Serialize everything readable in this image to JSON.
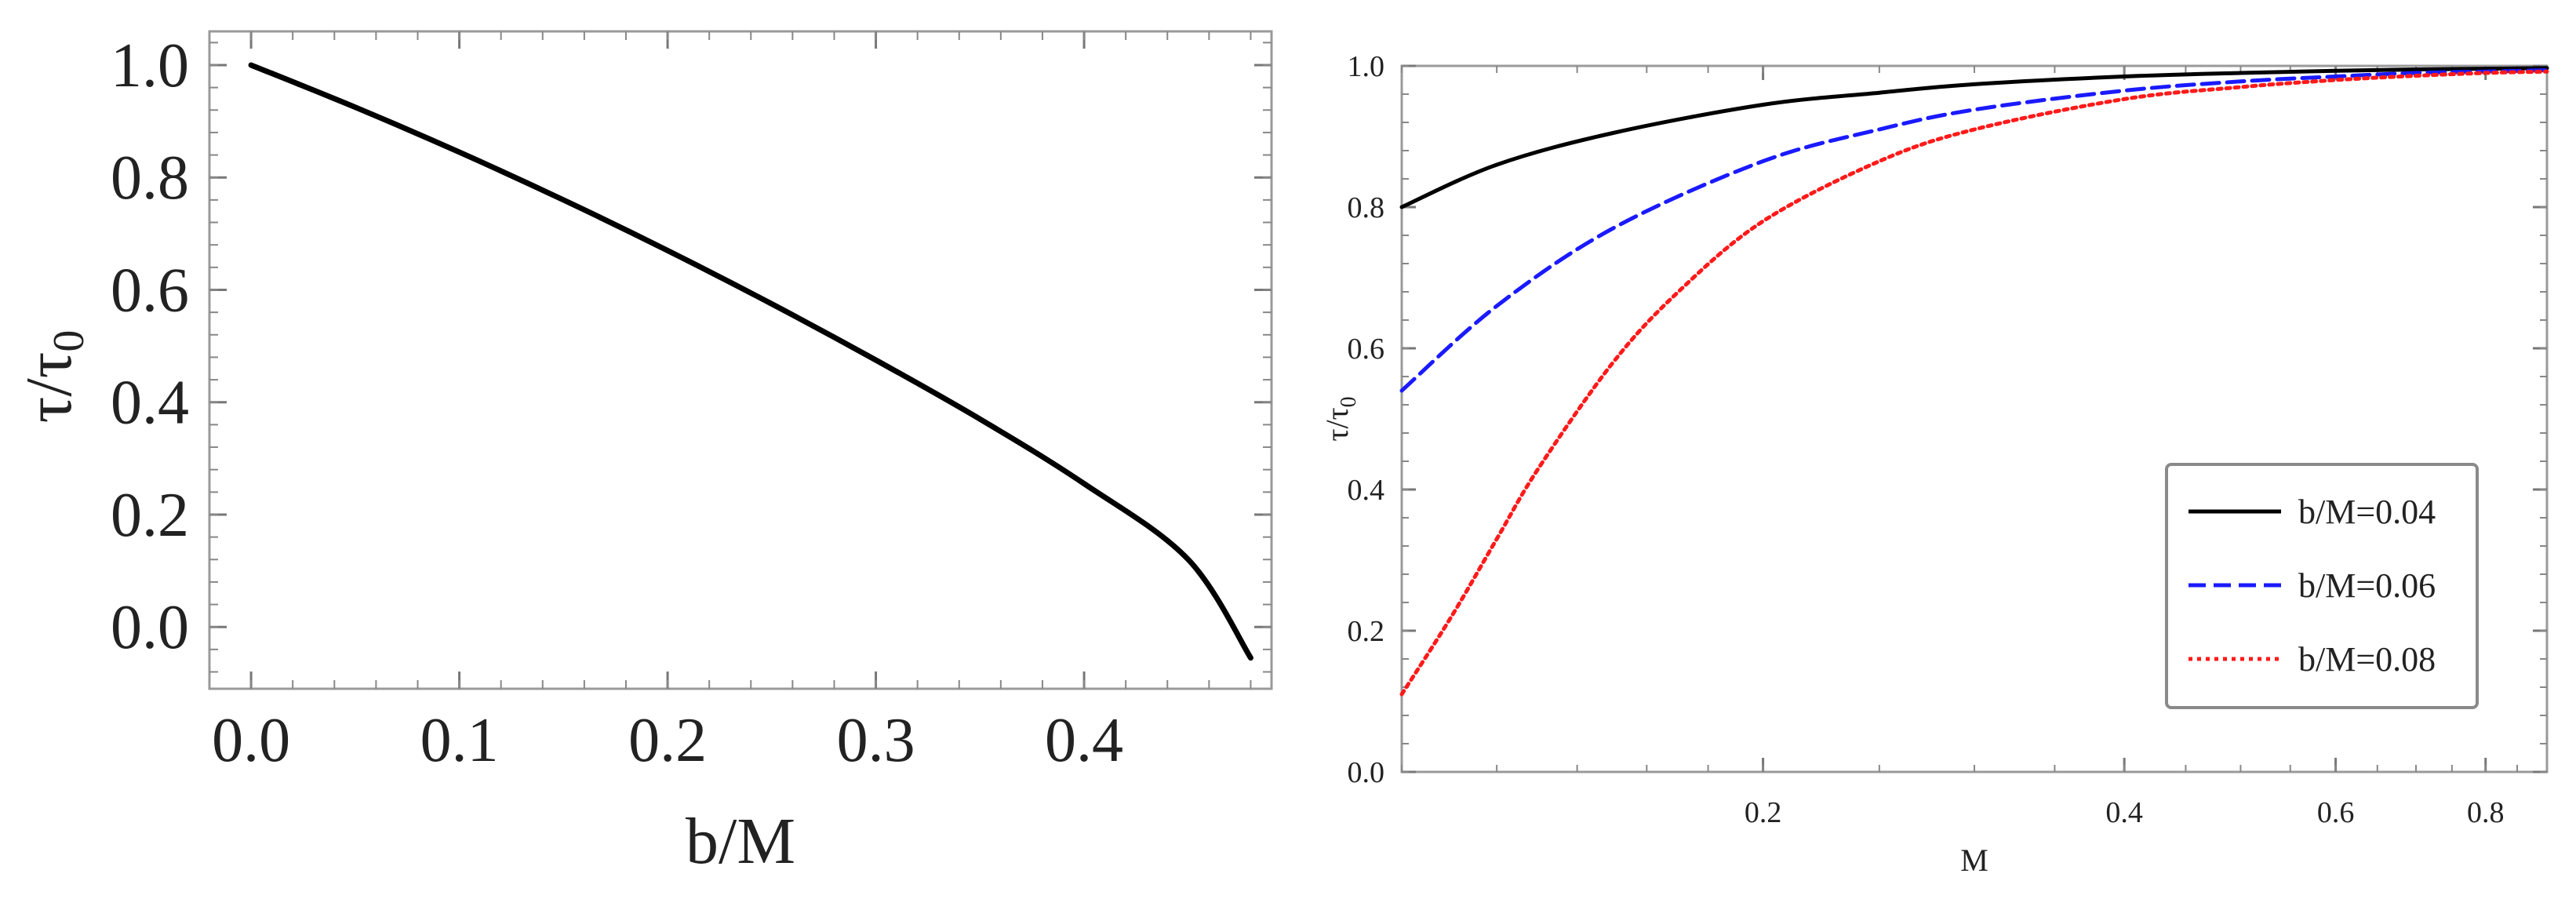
{
  "chart_data": [
    {
      "type": "line",
      "xlabel": "b/M",
      "ylabel": "τ/τ0",
      "ylabel_main": "τ/τ",
      "ylabel_sub": "0",
      "xlim": [
        -0.02,
        0.49
      ],
      "ylim": [
        -0.11,
        1.06
      ],
      "xticks": [
        0.0,
        0.1,
        0.2,
        0.3,
        0.4
      ],
      "xtick_labels": [
        "0.0",
        "0.1",
        "0.2",
        "0.3",
        "0.4"
      ],
      "yticks": [
        0.0,
        0.2,
        0.4,
        0.6,
        0.8,
        1.0
      ],
      "ytick_labels": [
        "0.0",
        "0.2",
        "0.4",
        "0.6",
        "0.8",
        "1.0"
      ],
      "grid": false,
      "series": [
        {
          "color": "#000000",
          "style": "solid",
          "x": [
            0.0,
            0.05,
            0.1,
            0.15,
            0.2,
            0.25,
            0.3,
            0.35,
            0.4,
            0.45,
            0.48
          ],
          "y": [
            1.0,
            0.925,
            0.845,
            0.76,
            0.67,
            0.575,
            0.475,
            0.37,
            0.255,
            0.12,
            -0.055
          ]
        }
      ]
    },
    {
      "type": "line",
      "xlabel": "M",
      "ylabel": "τ/τ0",
      "ylabel_main": "τ/τ",
      "ylabel_sub": "0",
      "xscale": "log",
      "xlim": [
        0.1,
        0.9
      ],
      "ylim": [
        0.0,
        1.0
      ],
      "xticks": [
        0.2,
        0.4,
        0.6,
        0.8
      ],
      "xtick_labels": [
        "0.2",
        "0.4",
        "0.6",
        "0.8"
      ],
      "yticks": [
        0.0,
        0.2,
        0.4,
        0.6,
        0.8,
        1.0
      ],
      "ytick_labels": [
        "0.0",
        "0.2",
        "0.4",
        "0.6",
        "0.8",
        "1.0"
      ],
      "grid": false,
      "legend_position": "bottom-right",
      "series": [
        {
          "name": "b/M=0.04",
          "color": "#000000",
          "style": "solid",
          "x": [
            0.1,
            0.12,
            0.15,
            0.2,
            0.25,
            0.3,
            0.4,
            0.5,
            0.6,
            0.7,
            0.8,
            0.9
          ],
          "y": [
            0.8,
            0.86,
            0.905,
            0.945,
            0.962,
            0.974,
            0.985,
            0.99,
            0.993,
            0.995,
            0.996,
            0.997
          ]
        },
        {
          "name": "b/M=0.06",
          "color": "#1a1aff",
          "style": "dashed",
          "x": [
            0.1,
            0.12,
            0.15,
            0.2,
            0.25,
            0.3,
            0.4,
            0.5,
            0.6,
            0.7,
            0.8,
            0.9
          ],
          "y": [
            0.54,
            0.66,
            0.77,
            0.865,
            0.91,
            0.938,
            0.965,
            0.978,
            0.985,
            0.99,
            0.992,
            0.994
          ]
        },
        {
          "name": "b/M=0.08",
          "color": "#ff1a1a",
          "style": "dotted",
          "x": [
            0.1,
            0.11,
            0.12,
            0.13,
            0.15,
            0.17,
            0.2,
            0.25,
            0.3,
            0.4,
            0.5,
            0.6,
            0.7,
            0.8,
            0.9
          ],
          "y": [
            0.11,
            0.22,
            0.33,
            0.43,
            0.58,
            0.68,
            0.78,
            0.865,
            0.91,
            0.953,
            0.97,
            0.98,
            0.986,
            0.99,
            0.992
          ]
        }
      ]
    }
  ]
}
